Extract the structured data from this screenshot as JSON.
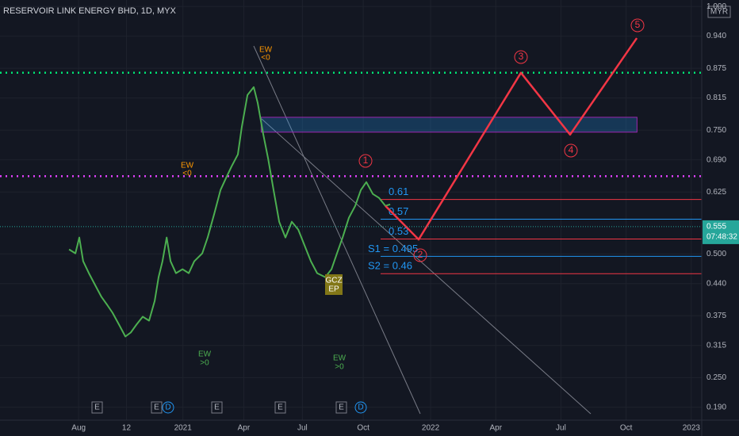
{
  "chart_data": {
    "type": "line",
    "title": "RESERVOIR LINK ENERGY BHD, 1D, MYX",
    "currency": "MYR",
    "xlim": [
      4.18,
      36.48
    ],
    "xticks": [
      {
        "value": 7.8,
        "label": "Aug"
      },
      {
        "value": 10.0,
        "label": "12"
      },
      {
        "value": 12.6,
        "label": "2021"
      },
      {
        "value": 15.4,
        "label": "Apr"
      },
      {
        "value": 18.1,
        "label": "Jul"
      },
      {
        "value": 20.9,
        "label": "Oct"
      },
      {
        "value": 24,
        "label": "2022"
      },
      {
        "value": 27,
        "label": "Apr"
      },
      {
        "value": 30,
        "label": "Jul"
      },
      {
        "value": 33,
        "label": "Oct"
      },
      {
        "value": 36,
        "label": "2023"
      }
    ],
    "ylim": [
      0.164,
      1.013
    ],
    "yticks": [
      {
        "value": 0.19,
        "label": "0.190"
      },
      {
        "value": 0.25,
        "label": "0.250"
      },
      {
        "value": 0.315,
        "label": "0.315"
      },
      {
        "value": 0.375,
        "label": "0.375"
      },
      {
        "value": 0.44,
        "label": "0.440"
      },
      {
        "value": 0.5,
        "label": "0.500"
      },
      {
        "value": 0.625,
        "label": "0.625"
      },
      {
        "value": 0.69,
        "label": "0.690"
      },
      {
        "value": 0.75,
        "label": "0.750"
      },
      {
        "value": 0.815,
        "label": "0.815"
      },
      {
        "value": 0.875,
        "label": "0.875"
      },
      {
        "value": 0.94,
        "label": "0.940"
      },
      {
        "value": 1.0,
        "label": "1.000"
      }
    ],
    "grid": true,
    "series": [
      {
        "color": "#4caf50",
        "x": [
          7.36,
          7.65,
          7.83,
          8.01,
          8.27,
          8.56,
          8.85,
          9.11,
          9.36,
          9.66,
          9.95,
          10.2,
          10.46,
          10.75,
          11.04,
          11.3,
          11.48,
          11.66,
          11.85,
          12.03,
          12.28,
          12.58,
          12.87,
          13.12,
          13.49,
          13.74,
          14.04,
          14.33,
          14.58,
          14.84,
          15.13,
          15.31,
          15.57,
          15.86,
          16.04,
          16.3,
          16.52,
          16.77,
          17.03,
          17.32,
          17.61,
          17.91,
          18.2,
          18.49,
          18.78,
          19.15,
          19.44,
          19.69,
          19.95,
          20.24,
          20.53,
          20.79,
          21.04,
          21.34,
          21.63,
          21.92,
          22.14
        ],
        "values": [
          0.509,
          0.501,
          0.533,
          0.485,
          0.461,
          0.437,
          0.413,
          0.397,
          0.381,
          0.357,
          0.333,
          0.341,
          0.357,
          0.373,
          0.365,
          0.405,
          0.453,
          0.485,
          0.533,
          0.485,
          0.461,
          0.469,
          0.461,
          0.485,
          0.501,
          0.533,
          0.581,
          0.629,
          0.653,
          0.677,
          0.701,
          0.757,
          0.821,
          0.837,
          0.805,
          0.741,
          0.693,
          0.629,
          0.565,
          0.533,
          0.565,
          0.549,
          0.517,
          0.485,
          0.461,
          0.453,
          0.469,
          0.501,
          0.533,
          0.573,
          0.597,
          0.629,
          0.645,
          0.621,
          0.613,
          0.597,
          0.6
        ]
      },
      {
        "color": "#f23645",
        "x": [
          21.92,
          23.45,
          28.16,
          30.42,
          33.49
        ],
        "values": [
          0.597,
          0.529,
          0.866,
          0.741,
          0.936
        ]
      }
    ],
    "wave_labels": [
      "1",
      "2",
      "3",
      "4",
      "5"
    ],
    "levels": [
      {
        "value": 0.866,
        "color": "#00e676"
      },
      {
        "value": 0.657,
        "color": "#e040fb"
      }
    ],
    "pivots": [
      {
        "label": "0.61",
        "value": 0.61,
        "color": "#f23645"
      },
      {
        "label": "0.57",
        "value": 0.57,
        "color": "#2196f3"
      },
      {
        "label": "0.53",
        "value": 0.53,
        "color": "#f23645"
      },
      {
        "label": "S1 = 0.495",
        "value": 0.495,
        "color": "#2196f3"
      },
      {
        "label": "S2 = 0.46",
        "value": 0.46,
        "color": "#f23645"
      }
    ],
    "zone": {
      "from": 0.746,
      "to": 0.776,
      "x": [
        16.2,
        33.5
      ]
    },
    "last_price": {
      "value": 0.555,
      "label": "0.555",
      "countdown": "07:48:32"
    },
    "annotations": [
      "EW",
      "<0",
      "EW",
      "<0",
      "EW",
      ">0",
      "EW",
      ">0",
      "GCZ",
      "EP"
    ],
    "earnings_label": "E",
    "dividend_label": "D"
  }
}
